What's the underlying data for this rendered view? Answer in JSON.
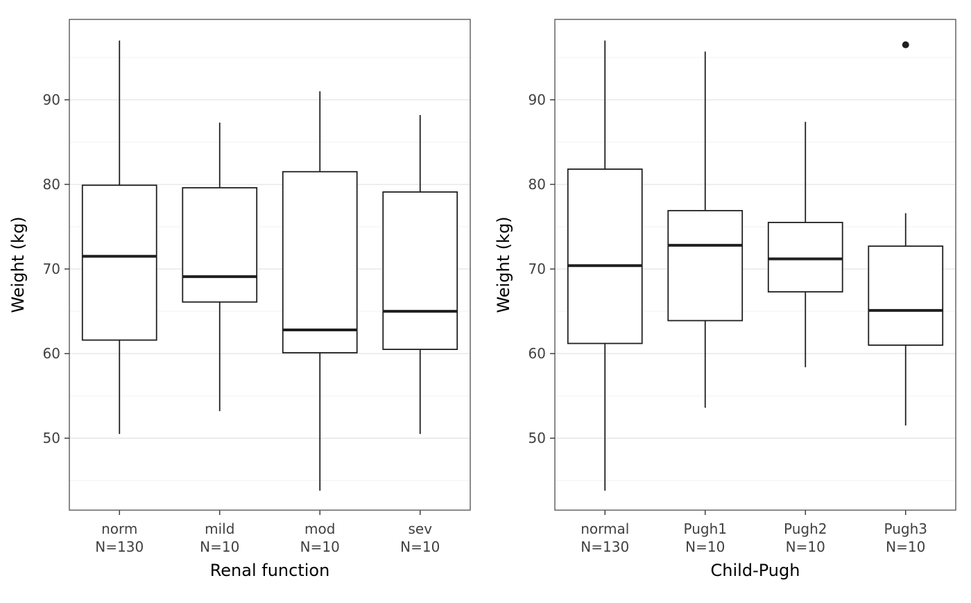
{
  "figure": {
    "background": "#ffffff",
    "panel_fill": "#ffffff",
    "panel_border": "#595959",
    "grid_major": "#e6e6e6",
    "grid_minor": "#f2f2f2",
    "box_stroke": "#1f1f1f",
    "median_color": "#1f1f1f",
    "outlier_color": "#1f1f1f",
    "tick_color": "#333333",
    "text_color": "#404040",
    "title_color": "#000000"
  },
  "chart_data": [
    {
      "type": "boxplot",
      "title": "",
      "xlabel": "Renal function",
      "ylabel": "Weight (kg)",
      "ylim": [
        41.5,
        99.5
      ],
      "yticks": [
        50,
        60,
        70,
        80,
        90
      ],
      "grid": true,
      "legend": false,
      "categories": [
        "norm",
        "mild",
        "mod",
        "sev"
      ],
      "n_labels": [
        "N=130",
        "N=10",
        "N=10",
        "N=10"
      ],
      "boxes": [
        {
          "category": "norm",
          "n_label": "N=130",
          "whisker_low": 50.5,
          "q1": 61.6,
          "median": 71.5,
          "q3": 79.9,
          "whisker_high": 97.0,
          "outliers": []
        },
        {
          "category": "mild",
          "n_label": "N=10",
          "whisker_low": 53.2,
          "q1": 66.1,
          "median": 69.1,
          "q3": 79.6,
          "whisker_high": 87.3,
          "outliers": []
        },
        {
          "category": "mod",
          "n_label": "N=10",
          "whisker_low": 43.8,
          "q1": 60.1,
          "median": 62.8,
          "q3": 81.5,
          "whisker_high": 91.0,
          "outliers": []
        },
        {
          "category": "sev",
          "n_label": "N=10",
          "whisker_low": 50.5,
          "q1": 60.5,
          "median": 65.0,
          "q3": 79.1,
          "whisker_high": 88.2,
          "outliers": []
        }
      ]
    },
    {
      "type": "boxplot",
      "title": "",
      "xlabel": "Child-Pugh",
      "ylabel": "Weight (kg)",
      "ylim": [
        41.5,
        99.5
      ],
      "yticks": [
        50,
        60,
        70,
        80,
        90
      ],
      "grid": true,
      "legend": false,
      "categories": [
        "normal",
        "Pugh1",
        "Pugh2",
        "Pugh3"
      ],
      "n_labels": [
        "N=130",
        "N=10",
        "N=10",
        "N=10"
      ],
      "boxes": [
        {
          "category": "normal",
          "n_label": "N=130",
          "whisker_low": 43.8,
          "q1": 61.2,
          "median": 70.4,
          "q3": 81.8,
          "whisker_high": 97.0,
          "outliers": []
        },
        {
          "category": "Pugh1",
          "n_label": "N=10",
          "whisker_low": 53.6,
          "q1": 63.9,
          "median": 72.8,
          "q3": 76.9,
          "whisker_high": 95.7,
          "outliers": []
        },
        {
          "category": "Pugh2",
          "n_label": "N=10",
          "whisker_low": 58.4,
          "q1": 67.3,
          "median": 71.2,
          "q3": 75.5,
          "whisker_high": 87.4,
          "outliers": []
        },
        {
          "category": "Pugh3",
          "n_label": "N=10",
          "whisker_low": 51.5,
          "q1": 61.0,
          "median": 65.1,
          "q3": 72.7,
          "whisker_high": 76.6,
          "outliers": [
            96.5
          ]
        }
      ]
    }
  ]
}
